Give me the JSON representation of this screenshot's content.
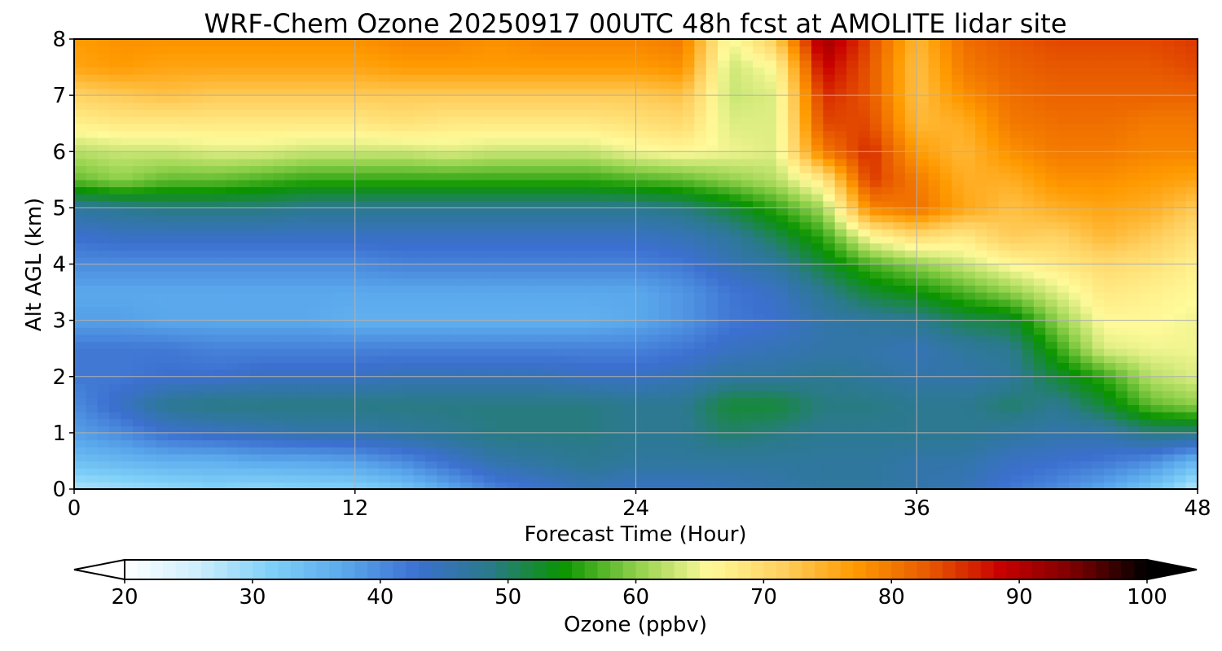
{
  "chart_data": {
    "type": "heatmap",
    "title": "WRF-Chem Ozone  20250917 00UTC 48h fcst at AMOLITE lidar site",
    "xlabel": "Forecast Time (Hour)",
    "ylabel": "Alt AGL (km)",
    "xlim": [
      0,
      48
    ],
    "ylim": [
      0,
      8
    ],
    "xticks": [
      "0",
      "12",
      "24",
      "36",
      "48"
    ],
    "yticks": [
      "0",
      "1",
      "2",
      "3",
      "4",
      "5",
      "6",
      "7",
      "8"
    ],
    "grid": true,
    "colorbar": {
      "label": "Ozone  (ppbv)",
      "range": [
        20,
        100
      ],
      "ticks": [
        "20",
        "30",
        "40",
        "50",
        "60",
        "70",
        "80",
        "90",
        "100"
      ],
      "extend": "both",
      "colors": [
        "#ffffff",
        "#cdeefc",
        "#7fd0f8",
        "#5aa8ec",
        "#3c70d0",
        "#2a7a8a",
        "#0a9400",
        "#8fd04a",
        "#fffa9a",
        "#ffd060",
        "#ff9a00",
        "#e85a00",
        "#c80000",
        "#7a0000",
        "#000000"
      ]
    },
    "time_hours": [
      0,
      2,
      4,
      6,
      8,
      10,
      12,
      14,
      16,
      18,
      20,
      22,
      24,
      26,
      28,
      30,
      32,
      34,
      36,
      38,
      40,
      42,
      44,
      46,
      48
    ],
    "altitude_km": [
      0,
      0.5,
      1,
      1.5,
      2,
      2.5,
      3,
      3.5,
      4,
      4.5,
      5,
      5.5,
      6,
      6.5,
      7,
      7.5,
      8
    ],
    "ozone_ppbv_by_time": [
      [
        28,
        34,
        38,
        40,
        42,
        42,
        38,
        37,
        40,
        43,
        47,
        58,
        62,
        67,
        71,
        76,
        77
      ],
      [
        29,
        35,
        40,
        44,
        42,
        42,
        38,
        37,
        40,
        44,
        48,
        60,
        63,
        68,
        72,
        77,
        78
      ],
      [
        30,
        36,
        43,
        48,
        43,
        42,
        37,
        37,
        40,
        44,
        49,
        58,
        63,
        68,
        73,
        76,
        78
      ],
      [
        31,
        36,
        44,
        49,
        43,
        41,
        37,
        37,
        40,
        44,
        49,
        58,
        64,
        68,
        72,
        76,
        78
      ],
      [
        30,
        37,
        45,
        49,
        44,
        41,
        37,
        37,
        40,
        44,
        49,
        57,
        64,
        68,
        72,
        76,
        78
      ],
      [
        31,
        37,
        46,
        49,
        44,
        41,
        37,
        37,
        40,
        44,
        48,
        56,
        63,
        68,
        72,
        76,
        78
      ],
      [
        31,
        38,
        46,
        49,
        44,
        41,
        36,
        37,
        40,
        44,
        48,
        56,
        63,
        68,
        72,
        76,
        78
      ],
      [
        33,
        40,
        47,
        49,
        45,
        41,
        36,
        37,
        41,
        44,
        48,
        56,
        63,
        69,
        72,
        77,
        79
      ],
      [
        37,
        43,
        48,
        49,
        45,
        41,
        36,
        37,
        41,
        44,
        48,
        56,
        64,
        68,
        72,
        77,
        79
      ],
      [
        41,
        46,
        49,
        49,
        45,
        41,
        36,
        37,
        41,
        44,
        48,
        56,
        63,
        68,
        72,
        77,
        78
      ],
      [
        43,
        47,
        49,
        49,
        45,
        41,
        36,
        37,
        41,
        44,
        48,
        56,
        63,
        68,
        72,
        77,
        79
      ],
      [
        45,
        48,
        49,
        49,
        44,
        41,
        36,
        37,
        41,
        44,
        48,
        56,
        63,
        68,
        72,
        77,
        79
      ],
      [
        44,
        47,
        48,
        48,
        44,
        41,
        37,
        37,
        41,
        44,
        48,
        57,
        65,
        69,
        72,
        77,
        79
      ],
      [
        44,
        47,
        48,
        48,
        45,
        42,
        39,
        39,
        42,
        45,
        49,
        58,
        66,
        70,
        73,
        78,
        80
      ],
      [
        45,
        47,
        50,
        52,
        47,
        44,
        42,
        42,
        45,
        47,
        52,
        60,
        65,
        64,
        63,
        63,
        65
      ],
      [
        46,
        47,
        49,
        52,
        47,
        45,
        43,
        44,
        47,
        51,
        56,
        62,
        64,
        64,
        64,
        66,
        72
      ],
      [
        47,
        47,
        48,
        49,
        48,
        46,
        46,
        48,
        52,
        56,
        61,
        68,
        80,
        84,
        86,
        89,
        92
      ],
      [
        47,
        47,
        48,
        49,
        47,
        46,
        47,
        52,
        57,
        66,
        79,
        85,
        86,
        84,
        83,
        83,
        84
      ],
      [
        46,
        46,
        48,
        48,
        46,
        45,
        48,
        54,
        60,
        70,
        81,
        80,
        77,
        74,
        73,
        73,
        74
      ],
      [
        45,
        46,
        48,
        48,
        46,
        47,
        51,
        57,
        63,
        68,
        76,
        75,
        74,
        75,
        78,
        80,
        81
      ],
      [
        42,
        44,
        47,
        50,
        47,
        48,
        52,
        60,
        66,
        72,
        73,
        75,
        78,
        80,
        81,
        82,
        83
      ],
      [
        40,
        43,
        46,
        48,
        52,
        56,
        60,
        64,
        68,
        71,
        75,
        78,
        80,
        81,
        82,
        83,
        84
      ],
      [
        37,
        42,
        46,
        52,
        56,
        64,
        66,
        68,
        70,
        74,
        76,
        78,
        80,
        81,
        82,
        83,
        84
      ],
      [
        33,
        40,
        49,
        58,
        62,
        65,
        66,
        67,
        69,
        72,
        75,
        77,
        79,
        80,
        82,
        83,
        84
      ],
      [
        27,
        35,
        49,
        60,
        64,
        65,
        65,
        66,
        67,
        69,
        72,
        76,
        79,
        80,
        82,
        84,
        85
      ]
    ]
  }
}
